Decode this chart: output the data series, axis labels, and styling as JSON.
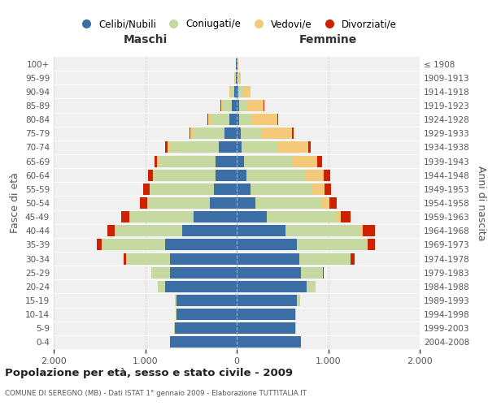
{
  "age_groups": [
    "0-4",
    "5-9",
    "10-14",
    "15-19",
    "20-24",
    "25-29",
    "30-34",
    "35-39",
    "40-44",
    "45-49",
    "50-54",
    "55-59",
    "60-64",
    "65-69",
    "70-74",
    "75-79",
    "80-84",
    "85-89",
    "90-94",
    "95-99",
    "100+"
  ],
  "birth_years": [
    "2004-2008",
    "1999-2003",
    "1994-1998",
    "1989-1993",
    "1984-1988",
    "1979-1983",
    "1974-1978",
    "1969-1973",
    "1964-1968",
    "1959-1963",
    "1954-1958",
    "1949-1953",
    "1944-1948",
    "1939-1943",
    "1934-1938",
    "1929-1933",
    "1924-1928",
    "1919-1923",
    "1914-1918",
    "1909-1913",
    "≤ 1908"
  ],
  "males": {
    "celibi": [
      730,
      680,
      660,
      660,
      780,
      730,
      730,
      780,
      600,
      470,
      290,
      250,
      230,
      230,
      200,
      130,
      80,
      50,
      30,
      10,
      5
    ],
    "coniugati": [
      0,
      5,
      5,
      20,
      80,
      200,
      480,
      700,
      730,
      700,
      680,
      700,
      680,
      620,
      530,
      350,
      200,
      100,
      40,
      10,
      5
    ],
    "vedovi": [
      0,
      0,
      0,
      0,
      0,
      0,
      0,
      0,
      5,
      5,
      5,
      5,
      10,
      20,
      30,
      30,
      30,
      20,
      10,
      5,
      0
    ],
    "divorziati": [
      0,
      0,
      0,
      0,
      5,
      5,
      30,
      50,
      80,
      90,
      80,
      70,
      50,
      30,
      20,
      10,
      10,
      10,
      0,
      0,
      0
    ]
  },
  "females": {
    "nubili": [
      700,
      640,
      640,
      660,
      760,
      700,
      680,
      660,
      530,
      330,
      200,
      150,
      110,
      80,
      50,
      40,
      30,
      30,
      20,
      10,
      5
    ],
    "coniugate": [
      0,
      5,
      5,
      30,
      100,
      240,
      560,
      760,
      830,
      760,
      730,
      680,
      640,
      520,
      400,
      230,
      130,
      80,
      50,
      10,
      5
    ],
    "vedove": [
      0,
      0,
      0,
      0,
      0,
      5,
      5,
      10,
      20,
      50,
      80,
      130,
      200,
      280,
      330,
      330,
      280,
      180,
      80,
      20,
      5
    ],
    "divorziate": [
      0,
      0,
      0,
      0,
      5,
      10,
      40,
      80,
      130,
      100,
      80,
      70,
      70,
      50,
      30,
      20,
      10,
      10,
      5,
      0,
      0
    ]
  },
  "colors": {
    "celibi_nubili": "#3a6ea5",
    "coniugati_e": "#c5d9a0",
    "vedovi_e": "#f5c97a",
    "divorziati_e": "#cc2200"
  },
  "xlim": 2000,
  "title": "Popolazione per età, sesso e stato civile - 2009",
  "subtitle": "COMUNE DI SEREGNO (MB) - Dati ISTAT 1° gennaio 2009 - Elaborazione TUTTITALIA.IT",
  "ylabel_left": "Fasce di età",
  "ylabel_right": "Anni di nascita",
  "xlabel_left": "Maschi",
  "xlabel_right": "Femmine",
  "background_color": "#ffffff",
  "plot_bg_color": "#f0f0f0",
  "grid_color": "#cccccc"
}
